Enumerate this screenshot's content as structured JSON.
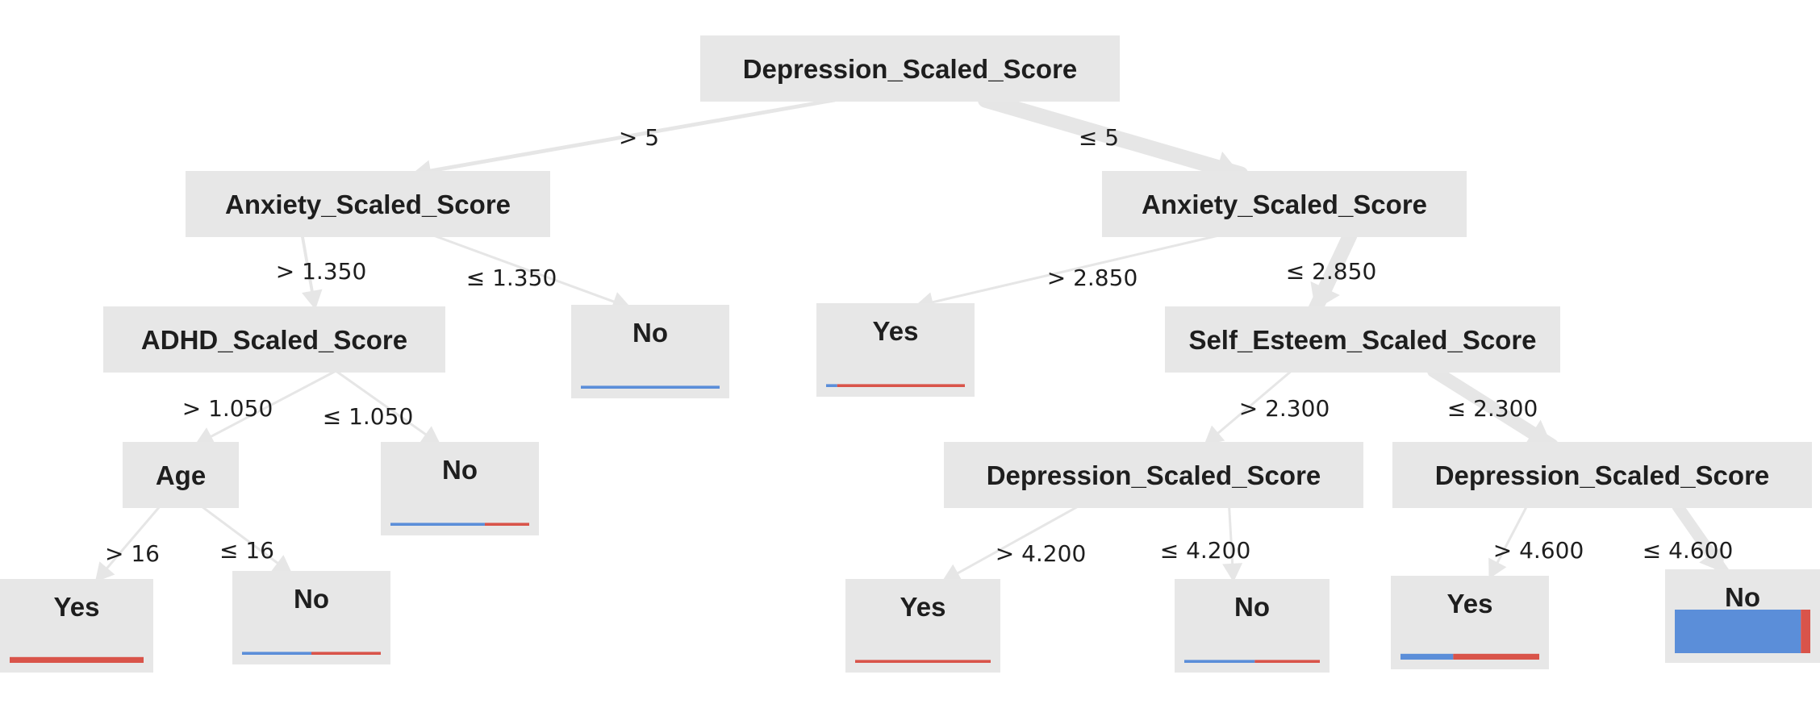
{
  "colors": {
    "class_no": "#5b8ed9",
    "class_yes": "#d9544a",
    "node_fill": "#e7e7e7",
    "edge": "#e6e6e6"
  },
  "tree": {
    "nodes": [
      {
        "id": "n0",
        "type": "split",
        "label": "Depression_Scaled_Score",
        "weight": 1.0
      },
      {
        "id": "n1",
        "type": "split",
        "label": "Anxiety_Scaled_Score",
        "weight": 0.2
      },
      {
        "id": "n2",
        "type": "split",
        "label": "Anxiety_Scaled_Score",
        "weight": 0.8
      },
      {
        "id": "n3",
        "type": "split",
        "label": "ADHD_Scaled_Score",
        "weight": 0.16
      },
      {
        "id": "n4",
        "type": "leaf",
        "label": "No",
        "weight": 0.04,
        "dist": {
          "no": 1.0,
          "yes": 0.0
        }
      },
      {
        "id": "n5",
        "type": "leaf",
        "label": "Yes",
        "weight": 0.04,
        "dist": {
          "no": 0.08,
          "yes": 0.92
        }
      },
      {
        "id": "n6",
        "type": "split",
        "label": "Self_Esteem_Scaled_Score",
        "weight": 0.76
      },
      {
        "id": "n7",
        "type": "split",
        "label": "Age",
        "weight": 0.12
      },
      {
        "id": "n8",
        "type": "leaf",
        "label": "No",
        "weight": 0.04,
        "dist": {
          "no": 0.68,
          "yes": 0.32
        }
      },
      {
        "id": "n9",
        "type": "split",
        "label": "Depression_Scaled_Score",
        "weight": 0.08
      },
      {
        "id": "n10",
        "type": "split",
        "label": "Depression_Scaled_Score",
        "weight": 0.68
      },
      {
        "id": "n11",
        "type": "leaf",
        "label": "Yes",
        "weight": 0.08,
        "dist": {
          "no": 0.0,
          "yes": 1.0
        }
      },
      {
        "id": "n12",
        "type": "leaf",
        "label": "No",
        "weight": 0.04,
        "dist": {
          "no": 0.5,
          "yes": 0.5
        }
      },
      {
        "id": "n13",
        "type": "leaf",
        "label": "Yes",
        "weight": 0.04,
        "dist": {
          "no": 0.0,
          "yes": 1.0
        }
      },
      {
        "id": "n14",
        "type": "leaf",
        "label": "No",
        "weight": 0.04,
        "dist": {
          "no": 0.52,
          "yes": 0.48
        }
      },
      {
        "id": "n15",
        "type": "leaf",
        "label": "Yes",
        "weight": 0.08,
        "dist": {
          "no": 0.38,
          "yes": 0.62
        }
      },
      {
        "id": "n16",
        "type": "leaf",
        "label": "No",
        "weight": 0.6,
        "dist": {
          "no": 0.93,
          "yes": 0.07
        }
      }
    ],
    "edges": [
      {
        "from": "n0",
        "to": "n1",
        "label": "> 5"
      },
      {
        "from": "n0",
        "to": "n2",
        "label": "≤ 5"
      },
      {
        "from": "n1",
        "to": "n3",
        "label": "> 1.350"
      },
      {
        "from": "n1",
        "to": "n4",
        "label": "≤ 1.350"
      },
      {
        "from": "n2",
        "to": "n5",
        "label": "> 2.850"
      },
      {
        "from": "n2",
        "to": "n6",
        "label": "≤ 2.850"
      },
      {
        "from": "n3",
        "to": "n7",
        "label": "> 1.050"
      },
      {
        "from": "n3",
        "to": "n8",
        "label": "≤ 1.050"
      },
      {
        "from": "n6",
        "to": "n9",
        "label": "> 2.300"
      },
      {
        "from": "n6",
        "to": "n10",
        "label": "≤ 2.300"
      },
      {
        "from": "n7",
        "to": "n11",
        "label": "> 16"
      },
      {
        "from": "n7",
        "to": "n12",
        "label": "≤ 16"
      },
      {
        "from": "n9",
        "to": "n13",
        "label": "> 4.200"
      },
      {
        "from": "n9",
        "to": "n14",
        "label": "≤ 4.200"
      },
      {
        "from": "n10",
        "to": "n15",
        "label": "> 4.600"
      },
      {
        "from": "n10",
        "to": "n16",
        "label": "≤ 4.600"
      }
    ]
  }
}
